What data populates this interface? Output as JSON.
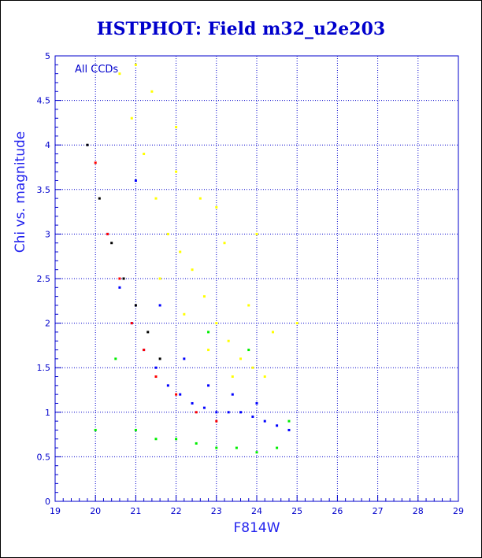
{
  "chart_data": {
    "type": "scatter",
    "title": "HSTPHOT: Field m32_u2e203",
    "xlabel": "F814W",
    "ylabel": "Chi vs. magnitude",
    "annotation": "All CCDs",
    "xlim": [
      19,
      29
    ],
    "ylim": [
      0,
      5
    ],
    "xticks": [
      "19",
      "20",
      "21",
      "22",
      "23",
      "24",
      "25",
      "26",
      "27",
      "28",
      "29"
    ],
    "yticks": [
      "0",
      "0.5",
      "1",
      "1.5",
      "2",
      "2.5",
      "3",
      "3.5",
      "4",
      "4.5",
      "5"
    ],
    "grid": true,
    "colors": {
      "axis": "#0000cc",
      "grid": "#0000cc",
      "title": "#0000cc",
      "series_yellow": "#ffff00",
      "series_blue": "#0000ff",
      "series_green": "#00ee00",
      "series_red": "#ff0000",
      "series_black": "#000000"
    },
    "series": [
      {
        "color": "yellow",
        "x": [
          20.6,
          20.9,
          21.2,
          21.5,
          21.8,
          22.1,
          22.4,
          22.7,
          23.0,
          23.3,
          23.6,
          23.9,
          24.2,
          21.0,
          21.4,
          22.0,
          22.6,
          23.2,
          23.8,
          24.4,
          21.6,
          22.2,
          22.8,
          23.4,
          22.0,
          23.0,
          24.0,
          25.0
        ],
        "y": [
          4.8,
          4.3,
          3.9,
          3.4,
          3.0,
          2.8,
          2.6,
          2.3,
          2.0,
          1.8,
          1.6,
          1.5,
          1.4,
          4.9,
          4.6,
          4.2,
          3.4,
          2.9,
          2.2,
          1.9,
          2.5,
          2.1,
          1.7,
          1.4,
          3.7,
          3.3,
          3.0,
          2.0
        ]
      },
      {
        "color": "blue",
        "x": [
          20.3,
          20.6,
          20.9,
          21.2,
          21.5,
          21.8,
          22.1,
          22.4,
          22.7,
          23.0,
          23.3,
          23.6,
          23.9,
          24.2,
          24.5,
          24.8,
          21.0,
          21.6,
          22.2,
          22.8,
          23.4,
          24.0
        ],
        "y": [
          3.0,
          2.4,
          2.0,
          1.7,
          1.5,
          1.3,
          1.2,
          1.1,
          1.05,
          1.0,
          1.0,
          1.0,
          0.95,
          0.9,
          0.85,
          0.8,
          3.6,
          2.2,
          1.6,
          1.3,
          1.2,
          1.1
        ]
      },
      {
        "color": "green",
        "x": [
          20.0,
          20.5,
          21.0,
          21.5,
          22.0,
          22.5,
          23.0,
          23.5,
          24.0,
          24.5,
          24.8,
          23.8,
          22.8
        ],
        "y": [
          0.8,
          1.6,
          0.8,
          0.7,
          0.7,
          0.65,
          0.6,
          0.6,
          0.55,
          0.6,
          0.9,
          1.7,
          1.9
        ]
      },
      {
        "color": "red",
        "x": [
          20.0,
          20.3,
          20.6,
          20.9,
          21.2,
          21.5,
          22.0,
          22.5,
          23.0
        ],
        "y": [
          3.8,
          3.0,
          2.5,
          2.0,
          1.7,
          1.4,
          1.2,
          1.0,
          0.9
        ]
      },
      {
        "color": "black",
        "x": [
          19.8,
          20.1,
          20.4,
          20.7,
          21.0,
          21.3,
          21.6
        ],
        "y": [
          4.0,
          3.4,
          2.9,
          2.5,
          2.2,
          1.9,
          1.6
        ]
      }
    ]
  }
}
